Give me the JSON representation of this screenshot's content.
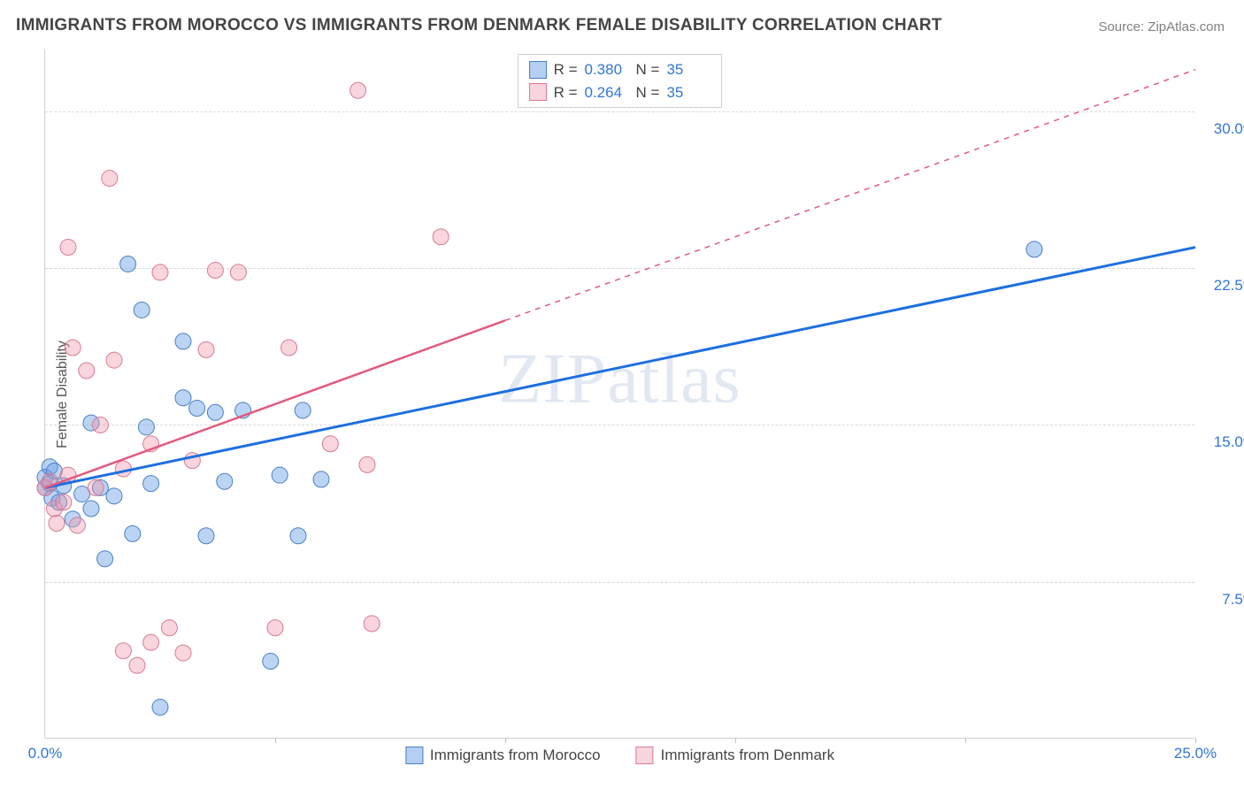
{
  "title": "IMMIGRANTS FROM MOROCCO VS IMMIGRANTS FROM DENMARK FEMALE DISABILITY CORRELATION CHART",
  "source_label": "Source: ZipAtlas.com",
  "y_axis_label": "Female Disability",
  "watermark_text": "ZIPatlas",
  "chart": {
    "type": "scatter",
    "xlim": [
      0,
      25
    ],
    "ylim": [
      0,
      33
    ],
    "x_ticks": [
      0,
      5,
      10,
      15,
      20,
      25
    ],
    "x_tick_labels": [
      "0.0%",
      "",
      "",
      "",
      "",
      "25.0%"
    ],
    "y_gridlines": [
      7.5,
      15.0,
      22.5,
      30.0
    ],
    "y_gridline_labels": [
      "7.5%",
      "15.0%",
      "22.5%",
      "30.0%"
    ],
    "background_color": "#ffffff",
    "grid_color": "#d8d8d8",
    "axis_color": "#d0d0d0",
    "tick_label_color": "#3176d6",
    "series": [
      {
        "name": "Immigrants from Morocco",
        "color_fill": "rgba(106,160,230,0.45)",
        "color_stroke": "#4a7fc4",
        "trend_color": "#1d6fe0",
        "trend_width": 3,
        "trend_dashed": false,
        "R": "0.380",
        "N": "35",
        "trend": {
          "x1": 0,
          "y1": 12.0,
          "x2": 25,
          "y2": 23.5
        },
        "points": [
          [
            0.0,
            12.0
          ],
          [
            0.0,
            12.5
          ],
          [
            0.1,
            13.0
          ],
          [
            0.1,
            12.2
          ],
          [
            0.15,
            11.5
          ],
          [
            0.2,
            12.8
          ],
          [
            0.3,
            11.3
          ],
          [
            0.4,
            12.1
          ],
          [
            0.6,
            10.5
          ],
          [
            0.8,
            11.7
          ],
          [
            1.0,
            11.0
          ],
          [
            1.0,
            15.1
          ],
          [
            1.2,
            12.0
          ],
          [
            1.3,
            8.6
          ],
          [
            1.5,
            11.6
          ],
          [
            1.8,
            22.7
          ],
          [
            1.9,
            9.8
          ],
          [
            2.1,
            20.5
          ],
          [
            2.2,
            14.9
          ],
          [
            2.3,
            12.2
          ],
          [
            2.5,
            1.5
          ],
          [
            3.0,
            16.3
          ],
          [
            3.0,
            19.0
          ],
          [
            3.3,
            15.8
          ],
          [
            3.5,
            9.7
          ],
          [
            3.7,
            15.6
          ],
          [
            3.9,
            12.3
          ],
          [
            4.3,
            15.7
          ],
          [
            4.9,
            3.7
          ],
          [
            5.1,
            12.6
          ],
          [
            5.5,
            9.7
          ],
          [
            5.6,
            15.7
          ],
          [
            6.0,
            12.4
          ],
          [
            21.5,
            23.4
          ]
        ]
      },
      {
        "name": "Immigrants from Denmark",
        "color_fill": "rgba(240,150,170,0.4)",
        "color_stroke": "#d87a92",
        "trend_color": "#e35a7e",
        "trend_width": 2.5,
        "trend_dashed": true,
        "trend_solid_until_x": 10,
        "R": "0.264",
        "N": "35",
        "trend": {
          "x1": 0,
          "y1": 12.0,
          "x2": 25,
          "y2": 32.0
        },
        "points": [
          [
            0.0,
            12.0
          ],
          [
            0.1,
            12.3
          ],
          [
            0.2,
            11.0
          ],
          [
            0.25,
            10.3
          ],
          [
            0.4,
            11.3
          ],
          [
            0.5,
            12.6
          ],
          [
            0.5,
            23.5
          ],
          [
            0.6,
            18.7
          ],
          [
            0.7,
            10.2
          ],
          [
            0.9,
            17.6
          ],
          [
            1.1,
            12.0
          ],
          [
            1.2,
            15.0
          ],
          [
            1.4,
            26.8
          ],
          [
            1.5,
            18.1
          ],
          [
            1.7,
            12.9
          ],
          [
            1.7,
            4.2
          ],
          [
            2.0,
            3.5
          ],
          [
            2.3,
            14.1
          ],
          [
            2.3,
            4.6
          ],
          [
            2.5,
            22.3
          ],
          [
            2.7,
            5.3
          ],
          [
            3.0,
            4.1
          ],
          [
            3.2,
            13.3
          ],
          [
            3.5,
            18.6
          ],
          [
            3.7,
            22.4
          ],
          [
            4.2,
            22.3
          ],
          [
            5.0,
            5.3
          ],
          [
            5.3,
            18.7
          ],
          [
            6.2,
            14.1
          ],
          [
            6.8,
            31.0
          ],
          [
            7.0,
            13.1
          ],
          [
            7.1,
            5.5
          ],
          [
            8.6,
            24.0
          ]
        ]
      }
    ]
  },
  "legend_top": {
    "rows": [
      {
        "swatch": "blue",
        "r_label": "R =",
        "r_value": "0.380",
        "n_label": "N =",
        "n_value": "35"
      },
      {
        "swatch": "pink",
        "r_label": "R =",
        "r_value": "0.264",
        "n_label": "N =",
        "n_value": "35"
      }
    ]
  },
  "legend_bottom": {
    "items": [
      {
        "swatch": "blue",
        "label": "Immigrants from Morocco"
      },
      {
        "swatch": "pink",
        "label": "Immigrants from Denmark"
      }
    ]
  }
}
